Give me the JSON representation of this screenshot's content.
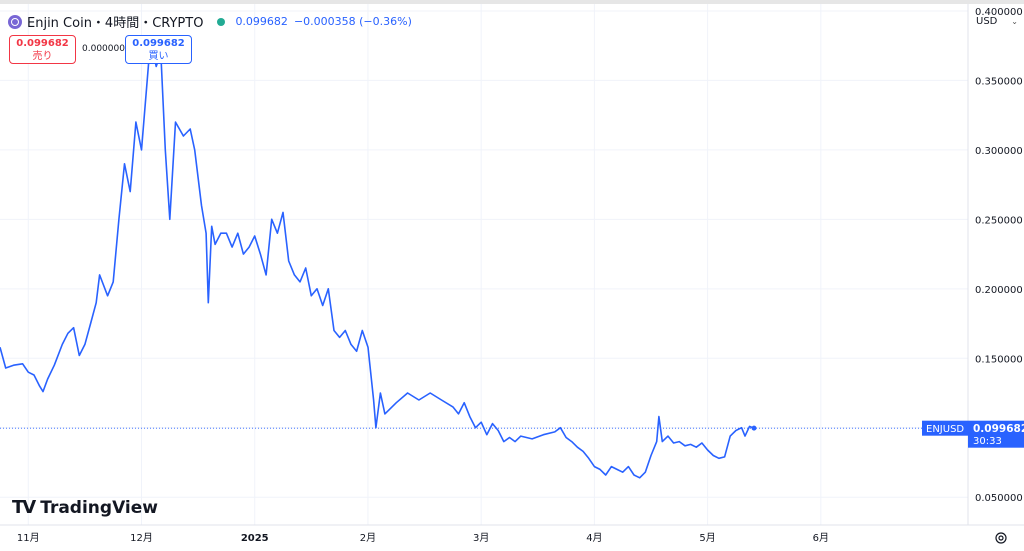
{
  "header": {
    "symbol_title": "Enjin Coin・4時間・CRYPTO",
    "last_price": "0.099682",
    "change": "−0.000358 (−0.36%)",
    "sell_price": "0.099682",
    "sell_label": "売り",
    "spread": "0.000000",
    "buy_price": "0.099682",
    "buy_label": "買い",
    "currency": "USD"
  },
  "price_tag": {
    "symbol": "ENJUSD",
    "price": "0.099682",
    "countdown": "30:33"
  },
  "brand": {
    "name": "TradingView"
  },
  "icons": {
    "coin": "enjin-coin-icon",
    "settings": "settings-gear-icon",
    "currency_dropdown": "chevron-down-icon"
  },
  "colors": {
    "line": "#2962ff",
    "sell": "#f23645",
    "buy": "#2962ff",
    "status": "#22ab94",
    "tag_bg": "#2962ff"
  },
  "chart_data": {
    "type": "line",
    "title": "Enjin Coin・4時間・CRYPTO",
    "x_ticks": [
      {
        "label": "11月",
        "t": 0.25
      },
      {
        "label": "12月",
        "t": 1.25
      },
      {
        "label": "2025",
        "t": 2.25
      },
      {
        "label": "2月",
        "t": 3.25
      },
      {
        "label": "3月",
        "t": 4.25
      },
      {
        "label": "4月",
        "t": 5.25
      },
      {
        "label": "5月",
        "t": 6.25
      },
      {
        "label": "6月",
        "t": 7.25
      }
    ],
    "y_ticks": [
      0.05,
      0.1,
      0.15,
      0.2,
      0.25,
      0.3,
      0.35,
      0.4
    ],
    "y_tick_labels": [
      "0.050000",
      "",
      "0.150000",
      "0.200000",
      "0.250000",
      "0.300000",
      "0.350000",
      "0.400000"
    ],
    "ylim": [
      0.03,
      0.405
    ],
    "xlim": [
      0,
      8.55
    ],
    "series": [
      {
        "values": [
          [
            0.0,
            0.158
          ],
          [
            0.05,
            0.143
          ],
          [
            0.12,
            0.145
          ],
          [
            0.2,
            0.146
          ],
          [
            0.25,
            0.14
          ],
          [
            0.3,
            0.138
          ],
          [
            0.35,
            0.13
          ],
          [
            0.38,
            0.126
          ],
          [
            0.42,
            0.135
          ],
          [
            0.48,
            0.145
          ],
          [
            0.55,
            0.16
          ],
          [
            0.6,
            0.168
          ],
          [
            0.65,
            0.172
          ],
          [
            0.7,
            0.152
          ],
          [
            0.75,
            0.16
          ],
          [
            0.8,
            0.175
          ],
          [
            0.85,
            0.19
          ],
          [
            0.88,
            0.21
          ],
          [
            0.95,
            0.195
          ],
          [
            1.0,
            0.205
          ],
          [
            1.05,
            0.25
          ],
          [
            1.1,
            0.29
          ],
          [
            1.15,
            0.27
          ],
          [
            1.2,
            0.32
          ],
          [
            1.25,
            0.3
          ],
          [
            1.3,
            0.35
          ],
          [
            1.33,
            0.38
          ],
          [
            1.38,
            0.36
          ],
          [
            1.42,
            0.37
          ],
          [
            1.46,
            0.3
          ],
          [
            1.5,
            0.25
          ],
          [
            1.55,
            0.32
          ],
          [
            1.62,
            0.31
          ],
          [
            1.68,
            0.315
          ],
          [
            1.72,
            0.3
          ],
          [
            1.78,
            0.26
          ],
          [
            1.82,
            0.24
          ],
          [
            1.84,
            0.19
          ],
          [
            1.87,
            0.245
          ],
          [
            1.9,
            0.232
          ],
          [
            1.95,
            0.24
          ],
          [
            2.0,
            0.24
          ],
          [
            2.05,
            0.23
          ],
          [
            2.1,
            0.24
          ],
          [
            2.15,
            0.225
          ],
          [
            2.2,
            0.23
          ],
          [
            2.25,
            0.238
          ],
          [
            2.3,
            0.225
          ],
          [
            2.35,
            0.21
          ],
          [
            2.4,
            0.25
          ],
          [
            2.45,
            0.24
          ],
          [
            2.5,
            0.255
          ],
          [
            2.55,
            0.22
          ],
          [
            2.6,
            0.21
          ],
          [
            2.65,
            0.205
          ],
          [
            2.7,
            0.215
          ],
          [
            2.75,
            0.195
          ],
          [
            2.8,
            0.2
          ],
          [
            2.85,
            0.188
          ],
          [
            2.9,
            0.2
          ],
          [
            2.95,
            0.17
          ],
          [
            3.0,
            0.165
          ],
          [
            3.05,
            0.17
          ],
          [
            3.1,
            0.16
          ],
          [
            3.15,
            0.155
          ],
          [
            3.2,
            0.17
          ],
          [
            3.25,
            0.158
          ],
          [
            3.3,
            0.12
          ],
          [
            3.32,
            0.1
          ],
          [
            3.36,
            0.125
          ],
          [
            3.4,
            0.11
          ],
          [
            3.5,
            0.118
          ],
          [
            3.6,
            0.125
          ],
          [
            3.7,
            0.12
          ],
          [
            3.8,
            0.125
          ],
          [
            3.9,
            0.12
          ],
          [
            4.0,
            0.115
          ],
          [
            4.05,
            0.11
          ],
          [
            4.1,
            0.118
          ],
          [
            4.15,
            0.108
          ],
          [
            4.2,
            0.1
          ],
          [
            4.25,
            0.104
          ],
          [
            4.3,
            0.095
          ],
          [
            4.35,
            0.103
          ],
          [
            4.4,
            0.098
          ],
          [
            4.45,
            0.09
          ],
          [
            4.5,
            0.093
          ],
          [
            4.55,
            0.09
          ],
          [
            4.6,
            0.094
          ],
          [
            4.7,
            0.092
          ],
          [
            4.8,
            0.095
          ],
          [
            4.9,
            0.097
          ],
          [
            4.95,
            0.1
          ],
          [
            5.0,
            0.093
          ],
          [
            5.05,
            0.09
          ],
          [
            5.1,
            0.086
          ],
          [
            5.15,
            0.083
          ],
          [
            5.2,
            0.078
          ],
          [
            5.25,
            0.072
          ],
          [
            5.3,
            0.07
          ],
          [
            5.35,
            0.066
          ],
          [
            5.4,
            0.072
          ],
          [
            5.45,
            0.07
          ],
          [
            5.5,
            0.068
          ],
          [
            5.55,
            0.072
          ],
          [
            5.6,
            0.066
          ],
          [
            5.65,
            0.064
          ],
          [
            5.7,
            0.068
          ],
          [
            5.75,
            0.08
          ],
          [
            5.8,
            0.09
          ],
          [
            5.82,
            0.108
          ],
          [
            5.85,
            0.09
          ],
          [
            5.9,
            0.094
          ],
          [
            5.95,
            0.089
          ],
          [
            6.0,
            0.09
          ],
          [
            6.05,
            0.087
          ],
          [
            6.1,
            0.088
          ],
          [
            6.15,
            0.086
          ],
          [
            6.2,
            0.089
          ],
          [
            6.25,
            0.084
          ],
          [
            6.3,
            0.08
          ],
          [
            6.35,
            0.078
          ],
          [
            6.4,
            0.079
          ],
          [
            6.45,
            0.094
          ],
          [
            6.5,
            0.098
          ],
          [
            6.55,
            0.1
          ],
          [
            6.58,
            0.094
          ],
          [
            6.62,
            0.101
          ],
          [
            6.66,
            0.0997
          ]
        ]
      }
    ],
    "last_value": 0.099682,
    "grid": true,
    "legend": "none"
  }
}
